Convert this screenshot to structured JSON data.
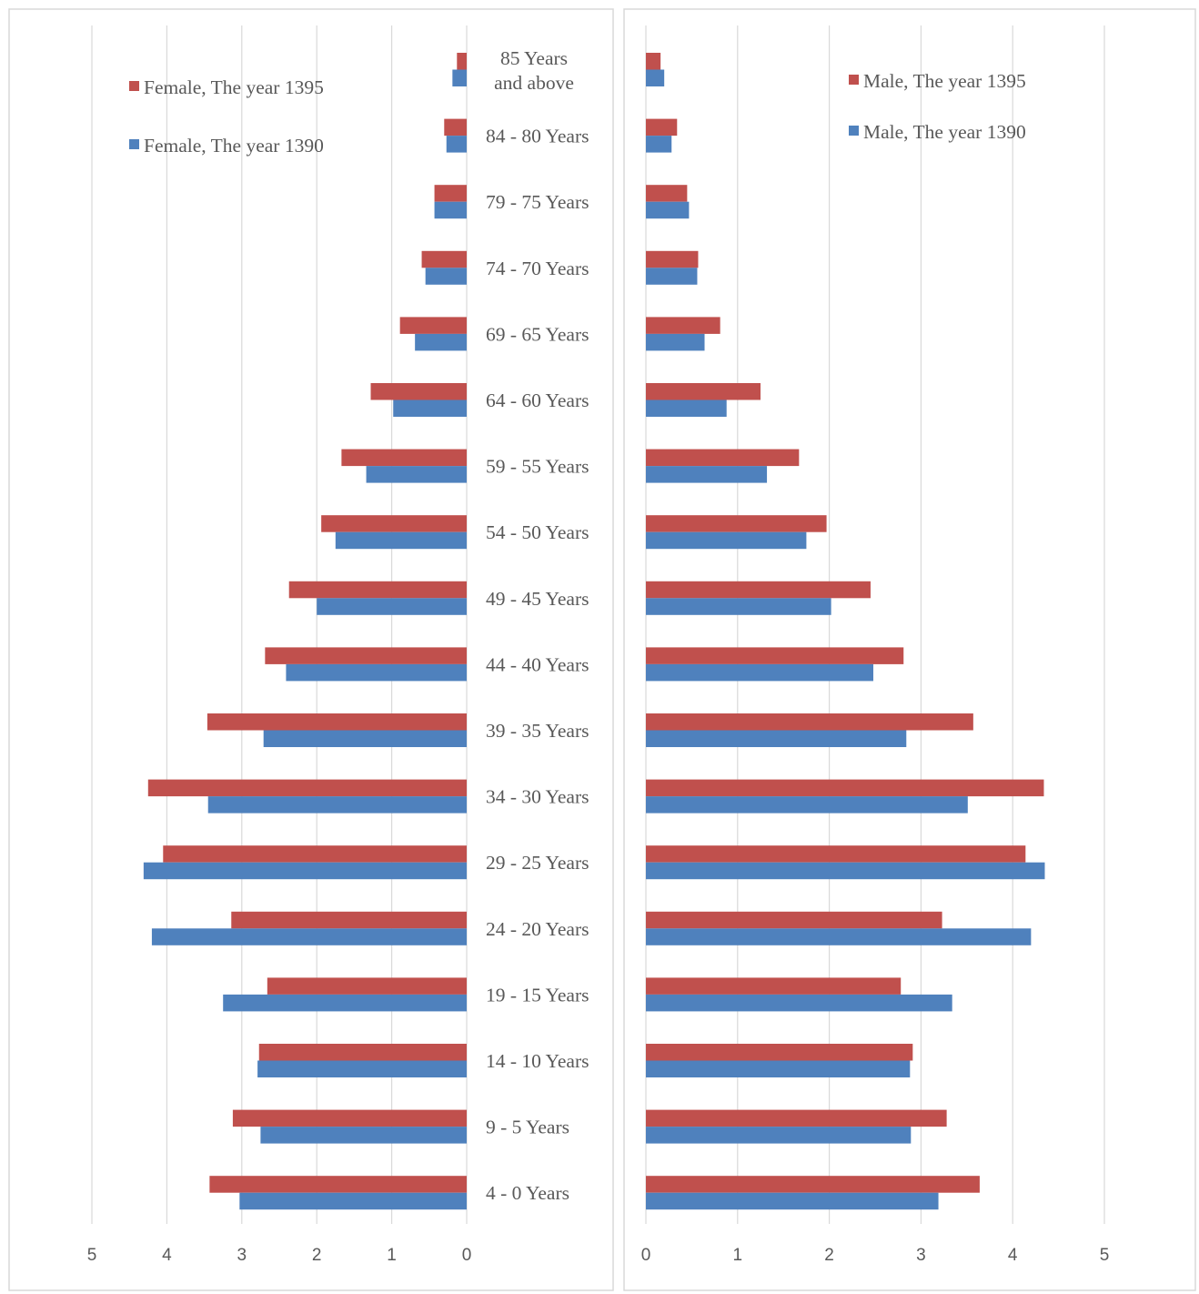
{
  "chart_data": [
    {
      "type": "bar",
      "orientation": "horizontal",
      "direction": "leftward",
      "panel": "female",
      "title": "",
      "xlabel": "",
      "ylabel": "",
      "xlim": [
        0,
        5
      ],
      "xticks": [
        "5",
        "4",
        "3",
        "2",
        "1",
        "0"
      ],
      "grid": true,
      "legend_position": "top-left",
      "categories": [
        "85 Years and above",
        "84 - 80 Years",
        "79 - 75 Years",
        "74 - 70 Years",
        "69 - 65 Years",
        "64 - 60 Years",
        "59 - 55 Years",
        "54 - 50 Years",
        "49 - 45 Years",
        "44 - 40 Years",
        "39 - 35 Years",
        "34 - 30 Years",
        "29 - 25 Years",
        "24 - 20 Years",
        "19 - 15 Years",
        "14 - 10 Years",
        "9 - 5 Years",
        "4 - 0 Years"
      ],
      "series": [
        {
          "name": "Female, The year 1395",
          "color": "#c0504d",
          "values": [
            0.13,
            0.3,
            0.43,
            0.6,
            0.89,
            1.28,
            1.67,
            1.94,
            2.37,
            2.69,
            3.46,
            4.25,
            4.05,
            3.14,
            2.66,
            2.77,
            3.12,
            3.43
          ]
        },
        {
          "name": "Female, The year 1390",
          "color": "#4f81bd",
          "values": [
            0.19,
            0.27,
            0.43,
            0.55,
            0.69,
            0.98,
            1.34,
            1.75,
            2.0,
            2.41,
            2.71,
            3.45,
            4.31,
            4.2,
            3.25,
            2.79,
            2.75,
            3.03
          ]
        }
      ]
    },
    {
      "type": "bar",
      "orientation": "horizontal",
      "direction": "rightward",
      "panel": "male",
      "title": "",
      "xlabel": "",
      "ylabel": "",
      "xlim": [
        0,
        5
      ],
      "xticks": [
        "0",
        "1",
        "2",
        "3",
        "4",
        "5"
      ],
      "grid": true,
      "legend_position": "top-right",
      "categories": [
        "85 Years and above",
        "84 - 80 Years",
        "79 - 75 Years",
        "74 - 70 Years",
        "69 - 65 Years",
        "64 - 60 Years",
        "59 - 55 Years",
        "54 - 50 Years",
        "49 - 45 Years",
        "44 - 40 Years",
        "39 - 35 Years",
        "34 - 30 Years",
        "29 - 25 Years",
        "24 - 20 Years",
        "19 - 15 Years",
        "14 - 10 Years",
        "9 - 5 Years",
        "4 - 0 Years"
      ],
      "series": [
        {
          "name": "Male, The year 1395",
          "color": "#c0504d",
          "values": [
            0.16,
            0.34,
            0.45,
            0.57,
            0.81,
            1.25,
            1.67,
            1.97,
            2.45,
            2.81,
            3.57,
            4.34,
            4.14,
            3.23,
            2.78,
            2.91,
            3.28,
            3.64
          ]
        },
        {
          "name": "Male, The year 1390",
          "color": "#4f81bd",
          "values": [
            0.2,
            0.28,
            0.47,
            0.56,
            0.64,
            0.88,
            1.32,
            1.75,
            2.02,
            2.48,
            2.84,
            3.51,
            4.35,
            4.2,
            3.34,
            2.88,
            2.89,
            3.19
          ]
        }
      ]
    }
  ],
  "age_labels": [
    [
      "85 Years",
      "and above"
    ],
    [
      "84 - 80 Years"
    ],
    [
      "79 - 75 Years"
    ],
    [
      "74 - 70 Years"
    ],
    [
      "69 - 65 Years"
    ],
    [
      "64 - 60 Years"
    ],
    [
      "59 - 55 Years"
    ],
    [
      "54 - 50 Years"
    ],
    [
      "49 - 45 Years"
    ],
    [
      "44 - 40 Years"
    ],
    [
      "39 - 35 Years"
    ],
    [
      "34 - 30 Years"
    ],
    [
      "29 - 25 Years"
    ],
    [
      "24 - 20 Years"
    ],
    [
      "19 - 15 Years"
    ],
    [
      "14 - 10 Years"
    ],
    [
      "9 - 5 Years"
    ],
    [
      "4 - 0 Years"
    ]
  ]
}
